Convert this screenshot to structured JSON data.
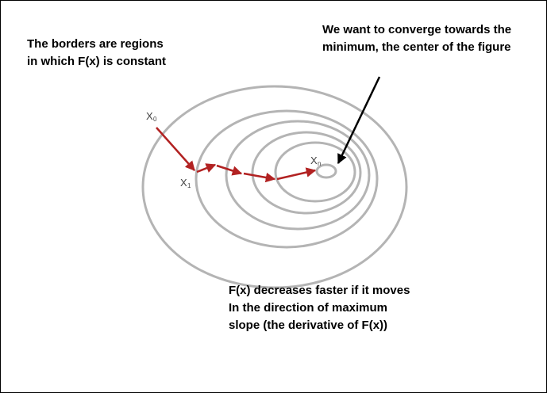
{
  "notes": {
    "constant_borders": {
      "line1": "The borders are regions",
      "line2": "in which F(x) is constant"
    },
    "converge": {
      "line1": "We want to converge towards the",
      "line2": "minimum, the center of the figure"
    },
    "derivative": {
      "line1": "F(x) decreases faster if it moves",
      "line2": "In the direction of maximum",
      "line3": "slope (the derivative of F(x))"
    }
  },
  "points": {
    "x0": {
      "base": "X",
      "sub": "0"
    },
    "x1": {
      "base": "X",
      "sub": "1"
    },
    "xn": {
      "base": "X",
      "sub": "n"
    }
  },
  "colors": {
    "contour": "#b4b4b4",
    "descent_path": "#b22222",
    "pointer_arrow": "#000000",
    "text": "#000000"
  }
}
